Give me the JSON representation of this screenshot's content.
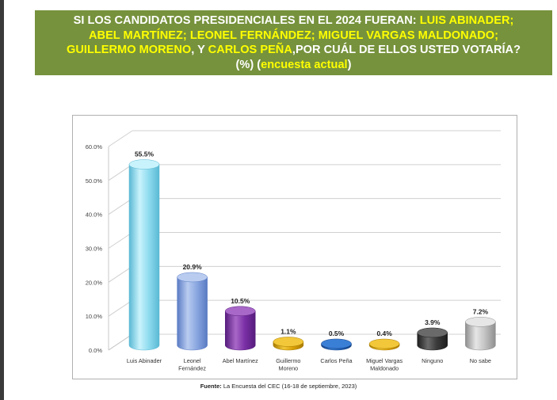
{
  "header": {
    "l1a": "SI LOS CANDIDATOS PRESIDENCIALES EN EL 2024 FUERAN: ",
    "l1b": "LUIS ABINADER;",
    "l2a": "ABEL MARTÍNEZ; LEONEL FERNÁNDEZ; MIGUEL VARGAS MALDONADO;",
    "l3a": "GUILLERMO MORENO",
    "l3b": ", Y ",
    "l3c": "CARLOS PEÑA",
    "l3d": ",POR CUÁL DE ELLOS USTED VOTARÍA?",
    "l4a": "(%) (",
    "l4b": "encuesta actual",
    "l4c": ")"
  },
  "source": {
    "label": "Fuente:",
    "text": " La Encuesta del CEC (16-18 de septiembre, 2023)"
  },
  "chart_data": {
    "type": "bar",
    "title": "",
    "xlabel": "",
    "ylabel": "",
    "ylim": [
      0,
      60
    ],
    "yticks": [
      "0.0%",
      "10.0%",
      "20.0%",
      "30.0%",
      "40.0%",
      "50.0%",
      "60.0%"
    ],
    "categories": [
      [
        "Luis Abinader"
      ],
      [
        "Leonel",
        "Fernández"
      ],
      [
        "Abel Martínez"
      ],
      [
        "Guillermo",
        "Moreno"
      ],
      [
        "Carlos Peña"
      ],
      [
        "Miguel Vargas",
        "Maldonado"
      ],
      [
        "Ninguno"
      ],
      [
        "No sabe"
      ]
    ],
    "values": [
      55.5,
      20.9,
      10.5,
      1.1,
      0.5,
      0.4,
      3.9,
      7.2
    ],
    "labels": [
      "55.5%",
      "20.9%",
      "10.5%",
      "1.1%",
      "0.5%",
      "0.4%",
      "3.9%",
      "7.2%"
    ],
    "colors": [
      [
        "#c9f3fc",
        "#8fdcef",
        "#5ab8d4"
      ],
      [
        "#b9ccf0",
        "#8aa7e0",
        "#5a7bc4"
      ],
      [
        "#a868c8",
        "#7a2fa6",
        "#561c7c"
      ],
      [
        "#f2c83a",
        "#dba106",
        "#a87a00"
      ],
      [
        "#3a7fd6",
        "#1f5fb5",
        "#134083"
      ],
      [
        "#f2c83a",
        "#dba106",
        "#a87a00"
      ],
      [
        "#6a6a6a",
        "#3a3a3a",
        "#1e1e1e"
      ],
      [
        "#e6e6e6",
        "#c2c2c2",
        "#8e8e8e"
      ]
    ],
    "grid": true
  }
}
